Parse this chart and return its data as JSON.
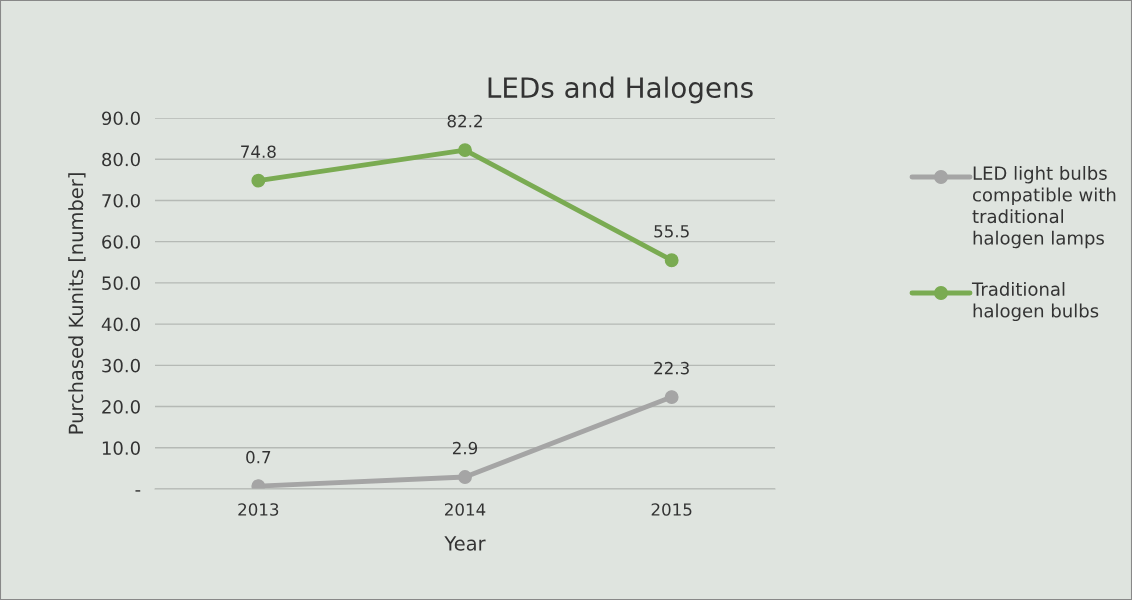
{
  "chart_data": {
    "type": "line",
    "title": "LEDs and Halogens",
    "xlabel": "Year",
    "ylabel": "Purchased Kunits [number]",
    "categories": [
      "2013",
      "2014",
      "2015"
    ],
    "series": [
      {
        "name": "LED light bulbs compatible with traditional halogen lamps",
        "color": "#a5a5a5",
        "values": [
          0.7,
          2.9,
          22.3
        ]
      },
      {
        "name": "Traditional halogen bulbs",
        "color": "#7aab52",
        "values": [
          74.8,
          82.2,
          55.5
        ]
      }
    ],
    "ylim": [
      0,
      90
    ],
    "yticks": [
      {
        "value": 0,
        "label": "-"
      },
      {
        "value": 10,
        "label": "10.0"
      },
      {
        "value": 20,
        "label": "20.0"
      },
      {
        "value": 30,
        "label": "30.0"
      },
      {
        "value": 40,
        "label": "40.0"
      },
      {
        "value": 50,
        "label": "50.0"
      },
      {
        "value": 60,
        "label": "60.0"
      },
      {
        "value": 70,
        "label": "70.0"
      },
      {
        "value": 80,
        "label": "80.0"
      },
      {
        "value": 90,
        "label": "90.0"
      }
    ],
    "grid": "y",
    "legend": "right",
    "marker": "circle",
    "line_style": "solid",
    "data_labels": true
  }
}
